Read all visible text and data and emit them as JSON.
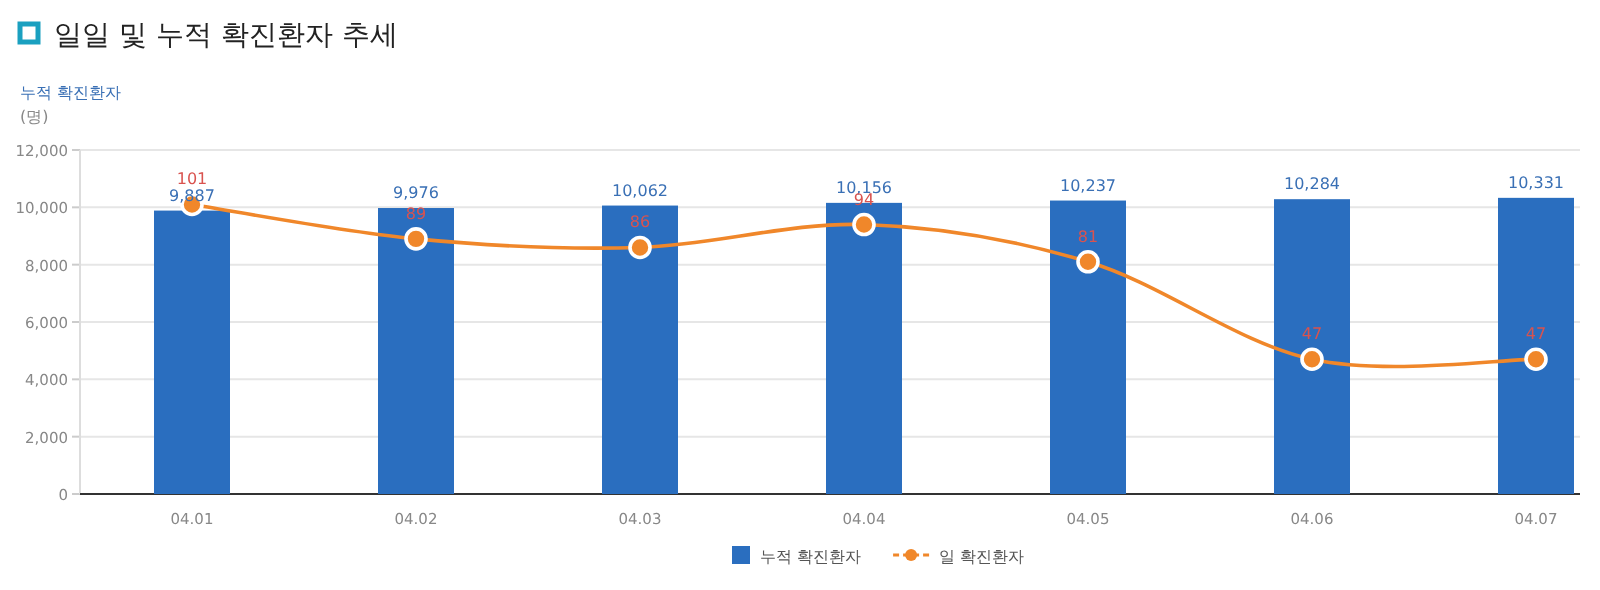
{
  "chart_data": {
    "type": "bar",
    "title": "일일 및 누적 확진환자 추세",
    "ylabel": "누적 확진환자",
    "annotations": [
      "(명)"
    ],
    "categories": [
      "04.01",
      "04.02",
      "04.03",
      "04.04",
      "04.05",
      "04.06",
      "04.07"
    ],
    "series": [
      {
        "name": "누적 확진환자",
        "color": "#2a6ebf",
        "values": [
          9887,
          9976,
          10062,
          10156,
          10237,
          10284,
          10331
        ],
        "value_labels": [
          "9,887",
          "9,976",
          "10,062",
          "10,156",
          "10,237",
          "10,284",
          "10,331"
        ]
      },
      {
        "name": "일 확진환자",
        "type": "line",
        "axis": "y2",
        "color": "#f0872a",
        "values": [
          101,
          89,
          86,
          94,
          81,
          47,
          47
        ]
      }
    ],
    "ylim": [
      0,
      12000
    ],
    "yticks": [
      {
        "value": 0,
        "label": "0"
      },
      {
        "value": 2000,
        "label": "2,000"
      },
      {
        "value": 4000,
        "label": "4,000"
      },
      {
        "value": 6000,
        "label": "6,000"
      },
      {
        "value": 8000,
        "label": "8,000"
      },
      {
        "value": 10000,
        "label": "10,000"
      },
      {
        "value": 12000,
        "label": "12,000"
      }
    ],
    "y2lim": [
      0,
      120
    ],
    "data_labels": true,
    "grid": "y",
    "legend": "bottom",
    "marker": "circle"
  }
}
